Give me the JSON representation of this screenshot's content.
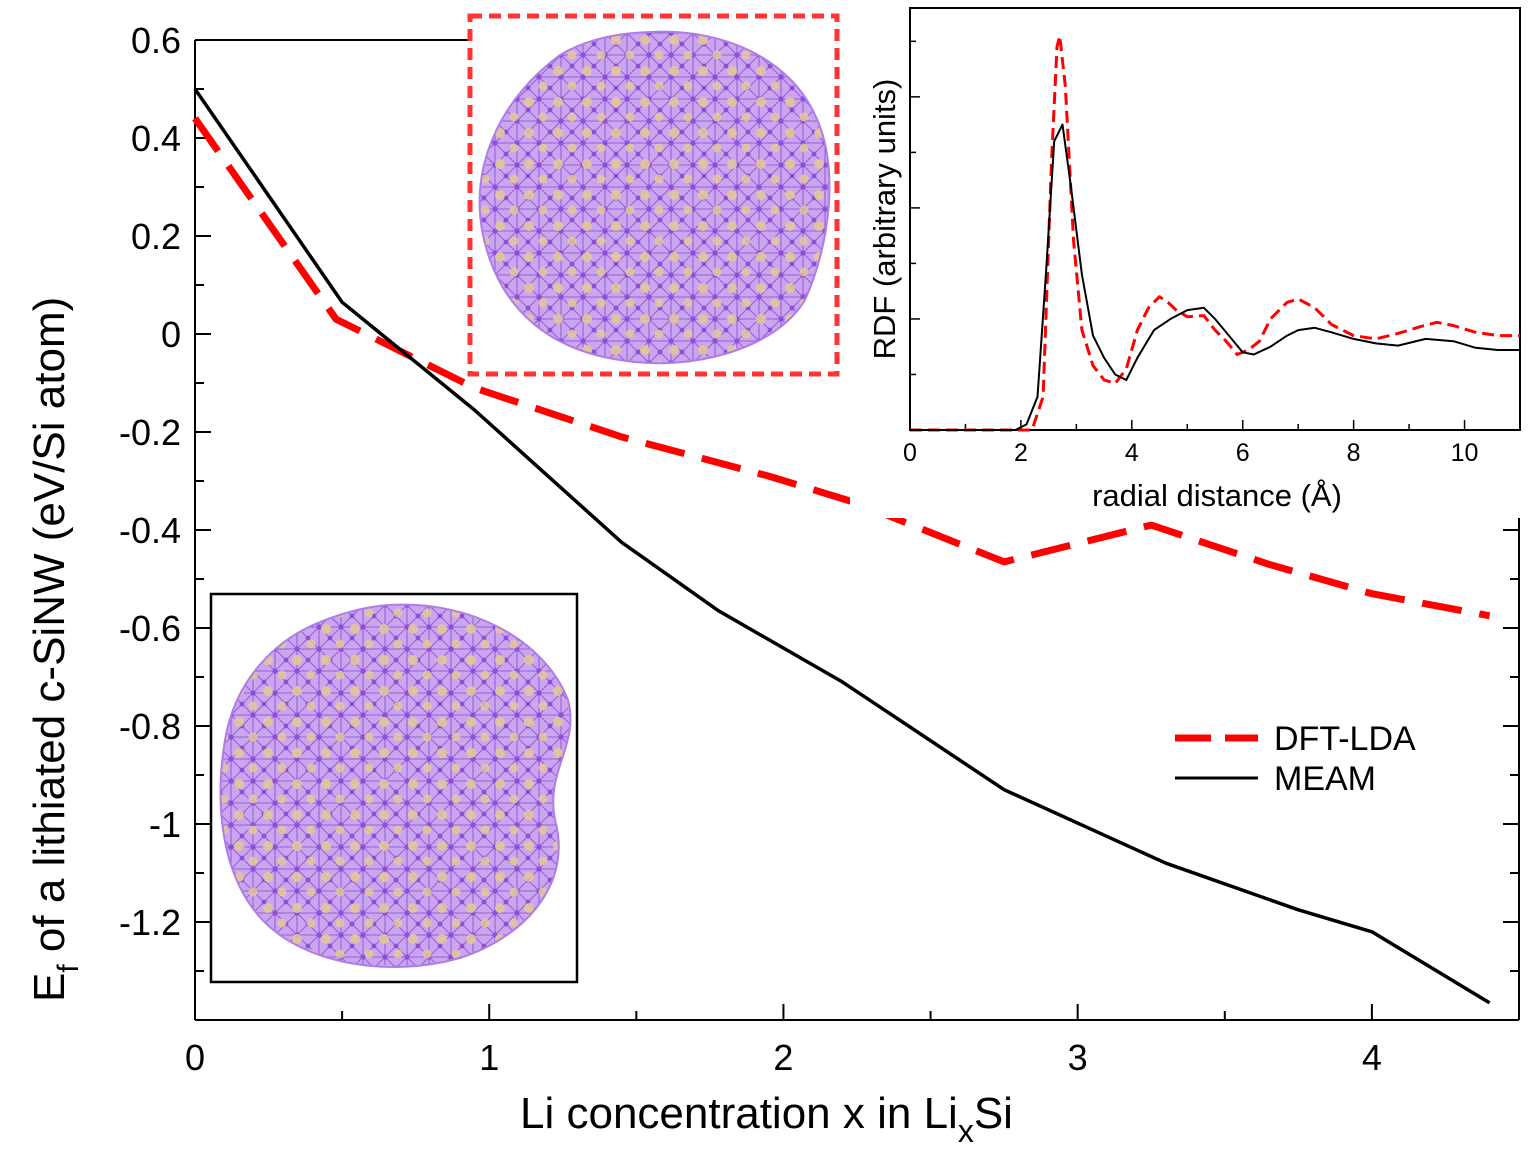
{
  "chart_data": [
    {
      "type": "line",
      "title": "",
      "xlabel": "Li  concentration x in Li",
      "xlabel_subscript": "x",
      "xlabel_suffix": "Si",
      "ylabel_prefix": "E",
      "ylabel_subscript": "f",
      "ylabel": " of a lithiated c-SiNW (eV/Si atom)",
      "xlim": [
        0,
        4.5
      ],
      "ylim": [
        -1.4,
        0.6
      ],
      "xticks": [
        0,
        1,
        2,
        3,
        4
      ],
      "xtick_labels": [
        "0",
        "1",
        "2",
        "3",
        "4"
      ],
      "yticks": [
        0.6,
        0.4,
        0.2,
        0,
        -0.2,
        -0.4,
        -0.6,
        -0.8,
        -1,
        -1.2
      ],
      "ytick_labels": [
        "0.6",
        "0.4",
        "0.2",
        "0",
        "-0.2",
        "-0.4",
        "-0.6",
        "-0.8",
        "-1",
        "-1.2"
      ],
      "legend_position": "right",
      "series": [
        {
          "name": "DFT-LDA",
          "color": "#ff0000",
          "style": "dashed",
          "x": [
            0,
            0.48,
            0.95,
            1.45,
            1.95,
            2.25,
            2.75,
            3.25,
            3.65,
            4.0,
            4.4
          ],
          "y": [
            0.44,
            0.03,
            -0.11,
            -0.21,
            -0.29,
            -0.345,
            -0.465,
            -0.39,
            -0.47,
            -0.53,
            -0.575
          ]
        },
        {
          "name": "MEAM",
          "color": "#000000",
          "style": "solid",
          "x": [
            0,
            0.5,
            0.95,
            1.45,
            1.78,
            2.2,
            2.75,
            3.3,
            3.75,
            4.0,
            4.4
          ],
          "y": [
            0.5,
            0.065,
            -0.155,
            -0.425,
            -0.565,
            -0.71,
            -0.93,
            -1.08,
            -1.175,
            -1.22,
            -1.365
          ]
        }
      ]
    },
    {
      "type": "line",
      "title": "",
      "xlabel": "radial distance (Å)",
      "ylabel": "RDF (arbitrary units)",
      "xlim": [
        0,
        11
      ],
      "ylim": [
        0,
        3.8
      ],
      "xticks": [
        0,
        2,
        4,
        6,
        8,
        10
      ],
      "xtick_labels": [
        "0",
        "2",
        "4",
        "6",
        "8",
        "10"
      ],
      "series": [
        {
          "name": "DFT-LDA",
          "color": "#ff0000",
          "style": "dashed",
          "x": [
            0,
            2.2,
            2.4,
            2.55,
            2.65,
            2.7,
            2.8,
            2.95,
            3.1,
            3.3,
            3.5,
            3.7,
            3.9,
            4.1,
            4.3,
            4.5,
            4.65,
            4.8,
            5.0,
            5.3,
            5.5,
            5.7,
            5.9,
            6.1,
            6.3,
            6.5,
            6.8,
            7.0,
            7.3,
            7.6,
            8.0,
            8.4,
            8.8,
            9.2,
            9.5,
            9.8,
            10.2,
            10.6,
            11.0
          ],
          "y": [
            0,
            0,
            0.3,
            2.4,
            3.45,
            3.55,
            3.1,
            1.7,
            0.9,
            0.58,
            0.45,
            0.42,
            0.55,
            0.9,
            1.1,
            1.2,
            1.15,
            1.08,
            1.02,
            1.03,
            0.9,
            0.8,
            0.68,
            0.72,
            0.8,
            1.0,
            1.15,
            1.18,
            1.1,
            0.95,
            0.85,
            0.82,
            0.87,
            0.93,
            0.97,
            0.94,
            0.88,
            0.85,
            0.85
          ]
        },
        {
          "name": "MEAM",
          "color": "#000000",
          "style": "solid",
          "x": [
            0,
            1.9,
            2.1,
            2.3,
            2.45,
            2.6,
            2.75,
            2.9,
            3.1,
            3.3,
            3.5,
            3.7,
            3.9,
            4.1,
            4.4,
            4.7,
            5.0,
            5.3,
            5.5,
            5.8,
            6.0,
            6.2,
            6.5,
            6.8,
            7.0,
            7.3,
            7.6,
            8.0,
            8.4,
            8.8,
            9.3,
            9.8,
            10.2,
            10.6,
            11.0
          ],
          "y": [
            0,
            0,
            0.05,
            0.3,
            1.4,
            2.6,
            2.75,
            2.2,
            1.4,
            0.85,
            0.65,
            0.5,
            0.45,
            0.65,
            0.9,
            1.0,
            1.08,
            1.1,
            1.0,
            0.82,
            0.7,
            0.68,
            0.75,
            0.85,
            0.9,
            0.92,
            0.88,
            0.82,
            0.78,
            0.76,
            0.82,
            0.8,
            0.74,
            0.72,
            0.72
          ]
        }
      ]
    }
  ]
}
